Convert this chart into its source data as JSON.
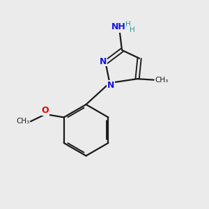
{
  "background_color": "#ebebeb",
  "bond_color": "#1a1a1a",
  "N_color": "#1414e6",
  "O_color": "#e60000",
  "H_color": "#2e9999",
  "figsize": [
    3.0,
    3.0
  ],
  "dpi": 100,
  "xlim": [
    0,
    10
  ],
  "ylim": [
    0,
    10
  ]
}
